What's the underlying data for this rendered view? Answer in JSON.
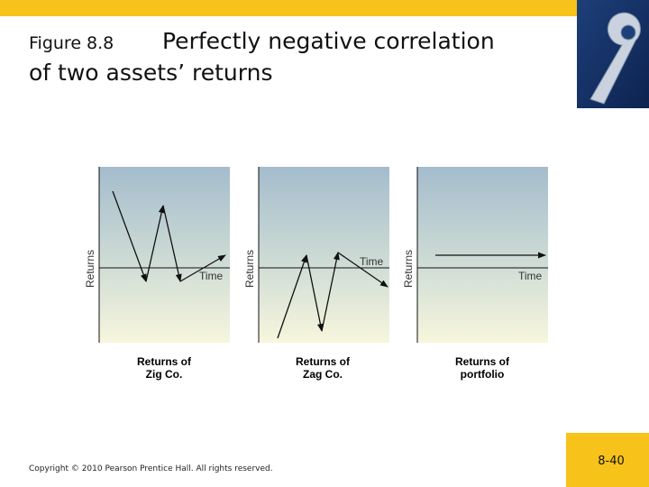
{
  "slide": {
    "figure_number": "Figure 8.8",
    "title_lines": [
      "Perfectly negative correlation",
      "of two assets’ returns"
    ],
    "panels": [
      {
        "y_axis_label": "Returns",
        "x_axis_label": "Time",
        "caption_lines": [
          "Returns of",
          "Zig Co."
        ]
      },
      {
        "y_axis_label": "Returns",
        "x_axis_label": "Time",
        "caption_lines": [
          "Returns of",
          "Zag Co."
        ]
      },
      {
        "y_axis_label": "Returns",
        "x_axis_label": "Time",
        "caption_lines": [
          "Returns of",
          "portfolio"
        ]
      }
    ],
    "copyright": "Copyright © 2010 Pearson Prentice Hall. All rights reserved.",
    "page_number": "8-40"
  }
}
